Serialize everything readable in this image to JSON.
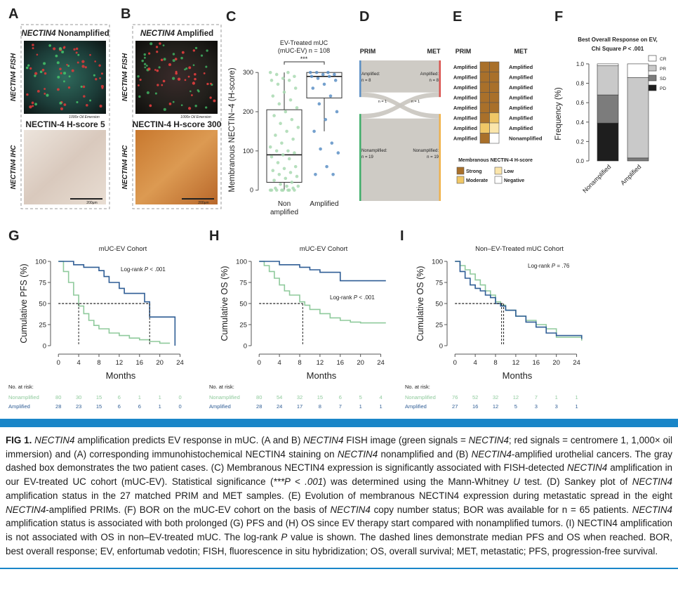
{
  "panel_labels": [
    "A",
    "B",
    "C",
    "D",
    "E",
    "F",
    "G",
    "H",
    "I"
  ],
  "panel_a": {
    "title": [
      {
        "text": "NECTIN4",
        "italic": true
      },
      {
        "text": " Nonamplified"
      }
    ],
    "fish_label": "NECTIN4 FISH",
    "ihc_label": "NECTIN4 IHC",
    "magnification": "1000x Oil Emersion",
    "ihc_title": "NECTIN-4 H-score 5",
    "scale_bar": "200μm"
  },
  "panel_b": {
    "title": [
      {
        "text": "NECTIN4",
        "italic": true
      },
      {
        "text": " Amplified"
      }
    ],
    "fish_label": "NECTIN4 FISH",
    "ihc_label": "NECTIN4 IHC",
    "magnification": "1000x Oil Emersion",
    "ihc_title": "NECTIN-4 H-score 300",
    "scale_bar": "200μm"
  },
  "chart_data": [
    {
      "type": "box",
      "title": [
        "EV-Treated mUC",
        "(mUC-EV) n = 108"
      ],
      "y_label": "Membranous NECTIN−4 (H-score)",
      "categories": [
        [
          "Non",
          "amplified"
        ],
        [
          "Amplified"
        ]
      ],
      "ylim": [
        -15,
        320
      ],
      "yticks": [
        0,
        100,
        200,
        300
      ],
      "significance": "***",
      "groups": [
        {
          "color": "#a9d9b2",
          "box": {
            "low": 0,
            "q1": 20,
            "median": 90,
            "q3": 205,
            "high": 300
          },
          "points": [
            300,
            300,
            295,
            290,
            285,
            280,
            280,
            270,
            260,
            250,
            240,
            230,
            220,
            210,
            200,
            190,
            180,
            170,
            160,
            150,
            140,
            130,
            120,
            110,
            100,
            100,
            95,
            90,
            85,
            80,
            70,
            60,
            55,
            50,
            45,
            40,
            35,
            30,
            25,
            20,
            15,
            10,
            10,
            5,
            5,
            0,
            0,
            0,
            0,
            0,
            0,
            0,
            0
          ]
        },
        {
          "color": "#5d91c6",
          "box": {
            "low": 150,
            "q1": 235,
            "median": 290,
            "q3": 300,
            "high": 300
          },
          "points": [
            300,
            300,
            300,
            295,
            295,
            290,
            290,
            285,
            280,
            270,
            260,
            240,
            220,
            200,
            180,
            150,
            120,
            105,
            95,
            60,
            40,
            40
          ]
        }
      ]
    },
    {
      "type": "sankey",
      "columns": [
        "PRIM",
        "MET"
      ],
      "nodes": [
        {
          "label": [
            "Amplified:",
            "n = 8"
          ],
          "value": 8,
          "color_left": "#5b8fc5",
          "color_right": "#d9534f"
        },
        {
          "label": [
            "Nonamplified:",
            "n = 19"
          ],
          "value": 19,
          "color_left": "#3fae6a",
          "color_right": "#f0b24a"
        }
      ],
      "flows": [
        {
          "from": 0,
          "to": 0,
          "value": 7
        },
        {
          "from": 0,
          "to": 1,
          "value": 1,
          "label": "n = 1"
        },
        {
          "from": 1,
          "to": 0,
          "value": 1,
          "label": "n = 1"
        },
        {
          "from": 1,
          "to": 1,
          "value": 18
        }
      ]
    },
    {
      "type": "tile",
      "columns": [
        "PRIM",
        "MET"
      ],
      "rows": [
        [
          "Amplified",
          "Amplified"
        ],
        [
          "Amplified",
          "Amplified"
        ],
        [
          "Amplified",
          "Amplified"
        ],
        [
          "Amplified",
          "Amplified"
        ],
        [
          "Amplified",
          "Amplified"
        ],
        [
          "Amplified",
          "Amplified"
        ],
        [
          "Amplified",
          "Amplified"
        ],
        [
          "Amplified",
          "Nonamplified"
        ]
      ],
      "cells": [
        [
          0,
          0
        ],
        [
          0,
          0
        ],
        [
          0,
          0
        ],
        [
          0,
          0
        ],
        [
          0,
          0
        ],
        [
          0,
          1
        ],
        [
          1,
          2
        ],
        [
          0,
          3
        ]
      ],
      "legend_title": "Membranous NECTIN-4 H-score",
      "levels": [
        {
          "name": "Strong",
          "color": "#a9702a"
        },
        {
          "name": "Moderate",
          "color": "#f0c766"
        },
        {
          "name": "Low",
          "color": "#fbe6ac"
        },
        {
          "name": "Negative",
          "color": "#ffffff"
        }
      ]
    },
    {
      "type": "stacked_bar",
      "title": [
        [
          {
            "text": "Best Overall Response on EV,"
          }
        ],
        [
          {
            "text": "Chi Square "
          },
          {
            "text": "P",
            "italic": true
          },
          {
            "text": " < .001"
          }
        ]
      ],
      "y_label": "Frequency (%)",
      "categories": [
        "Nonamplified",
        "Amplified"
      ],
      "ylim": [
        0,
        1.05
      ],
      "yticks": [
        {
          "value": 0,
          "label": "0.0"
        },
        {
          "value": 0.2,
          "label": "0.2"
        },
        {
          "value": 0.4,
          "label": "0.4"
        },
        {
          "value": 0.6,
          "label": "0.6"
        },
        {
          "value": 0.8,
          "label": "0.8"
        },
        {
          "value": 1,
          "label": "1.0"
        }
      ],
      "series": [
        {
          "name": "PD",
          "color": "#1e1e1e",
          "values": [
            0.39,
            0
          ]
        },
        {
          "name": "SD",
          "color": "#7c7c7c",
          "values": [
            0.29,
            0.03
          ]
        },
        {
          "name": "PR",
          "color": "#c9c9c9",
          "values": [
            0.3,
            0.83
          ]
        },
        {
          "name": "CR",
          "color": "#ffffff",
          "values": [
            0.02,
            0.14
          ]
        }
      ]
    },
    {
      "type": "step",
      "title": "mUC-EV Cohort",
      "annotation": [
        {
          "text": "Log-rank "
        },
        {
          "text": "P",
          "italic": true
        },
        {
          "text": " < .001"
        }
      ],
      "y_label": "Cumulative PFS (%)",
      "x_label": "Months",
      "xlim": [
        -1,
        26
      ],
      "ylim": [
        -5,
        105
      ],
      "xticks": [
        0,
        4,
        8,
        12,
        16,
        20,
        24
      ],
      "yticks": [
        0,
        25,
        50,
        75,
        100
      ],
      "median_level": 50,
      "medians": [
        4,
        18
      ],
      "series": [
        {
          "name": "Nonamplified",
          "color": "#8fca9c",
          "x": [
            0,
            1,
            2,
            3,
            4,
            5,
            6,
            7,
            8,
            10,
            12,
            14,
            16,
            18,
            20,
            22
          ],
          "values": [
            100,
            88,
            75,
            60,
            47,
            38,
            30,
            24,
            20,
            15,
            12,
            9,
            7,
            5,
            3,
            3
          ]
        },
        {
          "name": "Amplified",
          "color": "#2f5d95",
          "x": [
            0,
            3,
            5,
            8,
            9,
            10,
            12,
            13,
            15,
            17,
            18,
            23
          ],
          "values": [
            100,
            96,
            93,
            89,
            82,
            75,
            68,
            62,
            62,
            52,
            34,
            0
          ]
        }
      ],
      "risk_title": "No. at risk:",
      "risk": [
        [
          80,
          30,
          15,
          6,
          1,
          1,
          0
        ],
        [
          28,
          23,
          15,
          6,
          6,
          1,
          0
        ]
      ]
    },
    {
      "type": "step",
      "title": "mUC-EV Cohort",
      "annotation": [
        {
          "text": "Log-rank "
        },
        {
          "text": "P",
          "italic": true
        },
        {
          "text": " < .001"
        }
      ],
      "y_label": "Cumulative OS (%)",
      "x_label": "Months",
      "xlim": [
        -1,
        26
      ],
      "ylim": [
        -5,
        105
      ],
      "xticks": [
        0,
        4,
        8,
        12,
        16,
        20,
        24
      ],
      "yticks": [
        0,
        25,
        50,
        75,
        100
      ],
      "median_level": 50,
      "medians": [
        8.6
      ],
      "series": [
        {
          "name": "Nonamplified",
          "color": "#8fca9c",
          "x": [
            0,
            1,
            2,
            3,
            4,
            5,
            6,
            8,
            9,
            10,
            12,
            14,
            16,
            18,
            20,
            25
          ],
          "values": [
            100,
            95,
            88,
            80,
            72,
            65,
            60,
            52,
            48,
            43,
            38,
            33,
            30,
            28,
            27,
            27
          ]
        },
        {
          "name": "Amplified",
          "color": "#2f5d95",
          "x": [
            0,
            4,
            8,
            10,
            12,
            16,
            25
          ],
          "values": [
            100,
            96,
            93,
            90,
            87,
            77,
            77
          ]
        }
      ],
      "risk_title": "No. at risk:",
      "risk": [
        [
          80,
          54,
          32,
          15,
          6,
          5,
          4
        ],
        [
          28,
          24,
          17,
          8,
          7,
          1,
          1
        ]
      ]
    },
    {
      "type": "step",
      "title": "Non–EV-Treated mUC Cohort",
      "annotation": [
        {
          "text": "Log-rank "
        },
        {
          "text": "P",
          "italic": true
        },
        {
          "text": " = .76"
        }
      ],
      "y_label": "Cumulative OS (%)",
      "x_label": "Months",
      "xlim": [
        -1,
        26
      ],
      "ylim": [
        -5,
        105
      ],
      "xticks": [
        0,
        4,
        8,
        12,
        16,
        20,
        24
      ],
      "yticks": [
        0,
        25,
        50,
        75,
        100
      ],
      "median_level": 50,
      "medians": [
        9.2,
        9.6
      ],
      "series": [
        {
          "name": "Nonamplified",
          "color": "#8fca9c",
          "x": [
            0,
            1,
            2,
            3,
            4,
            5,
            6,
            7,
            8,
            9,
            10,
            12,
            14,
            16,
            18,
            20,
            25
          ],
          "values": [
            100,
            95,
            90,
            85,
            78,
            72,
            65,
            60,
            52,
            48,
            42,
            35,
            30,
            25,
            20,
            10,
            6
          ]
        },
        {
          "name": "Amplified",
          "color": "#2f5d95",
          "x": [
            0,
            1,
            2,
            3,
            4,
            5,
            6,
            7,
            8,
            9,
            10,
            12,
            14,
            16,
            18,
            20,
            25
          ],
          "values": [
            100,
            88,
            80,
            72,
            68,
            65,
            60,
            57,
            50,
            47,
            42,
            35,
            28,
            22,
            15,
            12,
            8
          ]
        }
      ],
      "risk_title": "No. at risk:",
      "risk": [
        [
          76,
          52,
          32,
          12,
          7,
          1,
          1
        ],
        [
          27,
          16,
          12,
          5,
          3,
          3,
          1
        ]
      ]
    }
  ],
  "caption": [
    {
      "text": "FIG 1.",
      "bold": true
    },
    {
      "text": " "
    },
    {
      "text": "NECTIN4",
      "italic": true
    },
    {
      "text": " amplification predicts EV response in mUC. (A and B) "
    },
    {
      "text": "NECTIN4",
      "italic": true
    },
    {
      "text": " FISH image (green signals = "
    },
    {
      "text": "NECTIN4",
      "italic": true
    },
    {
      "text": "; red signals = centromere 1, 1,000× oil immersion) and (A) corresponding immunohistochemical NECTIN4 staining on "
    },
    {
      "text": "NECTIN4",
      "italic": true
    },
    {
      "text": " nonamplified and (B) "
    },
    {
      "text": "NECTIN4",
      "italic": true
    },
    {
      "text": "-amplified urothelial cancers. The gray dashed box demonstrates the two patient cases. (C) Membranous NECTIN4 expression is significantly associated with FISH-detected "
    },
    {
      "text": "NECTIN4",
      "italic": true
    },
    {
      "text": " amplification in our EV-treated UC cohort (mUC-EV). Statistical significance ("
    },
    {
      "text": "***P < .001",
      "italic": true
    },
    {
      "text": ") was determined using the Mann-Whitney "
    },
    {
      "text": "U",
      "italic": true
    },
    {
      "text": " test. (D) Sankey plot of "
    },
    {
      "text": "NECTIN4",
      "italic": true
    },
    {
      "text": " amplification status in the 27 matched PRIM and MET samples. (E) Evolution of membranous NECTIN4 expression during metastatic spread in the eight "
    },
    {
      "text": "NECTIN4",
      "italic": true
    },
    {
      "text": "-amplified PRIMs. (F) BOR on the mUC-EV cohort on the basis of "
    },
    {
      "text": "NECTIN4",
      "italic": true
    },
    {
      "text": " copy number status; BOR was available for n = 65 patients. "
    },
    {
      "text": "NECTIN4",
      "italic": true
    },
    {
      "text": " amplification status is associated with both prolonged (G) PFS and (H) OS since EV therapy start compared with nonamplified tumors. (I) NECTIN4 amplification is not associated with OS in non–EV-treated mUC. The log-rank "
    },
    {
      "text": "P",
      "italic": true
    },
    {
      "text": " value is shown. The dashed lines demonstrate median PFS and OS when reached. BOR, best overall response; EV, enfortumab vedotin; FISH, fluorescence in situ hybridization; OS, overall survival; MET, metastatic; PFS, progression-free survival."
    }
  ]
}
